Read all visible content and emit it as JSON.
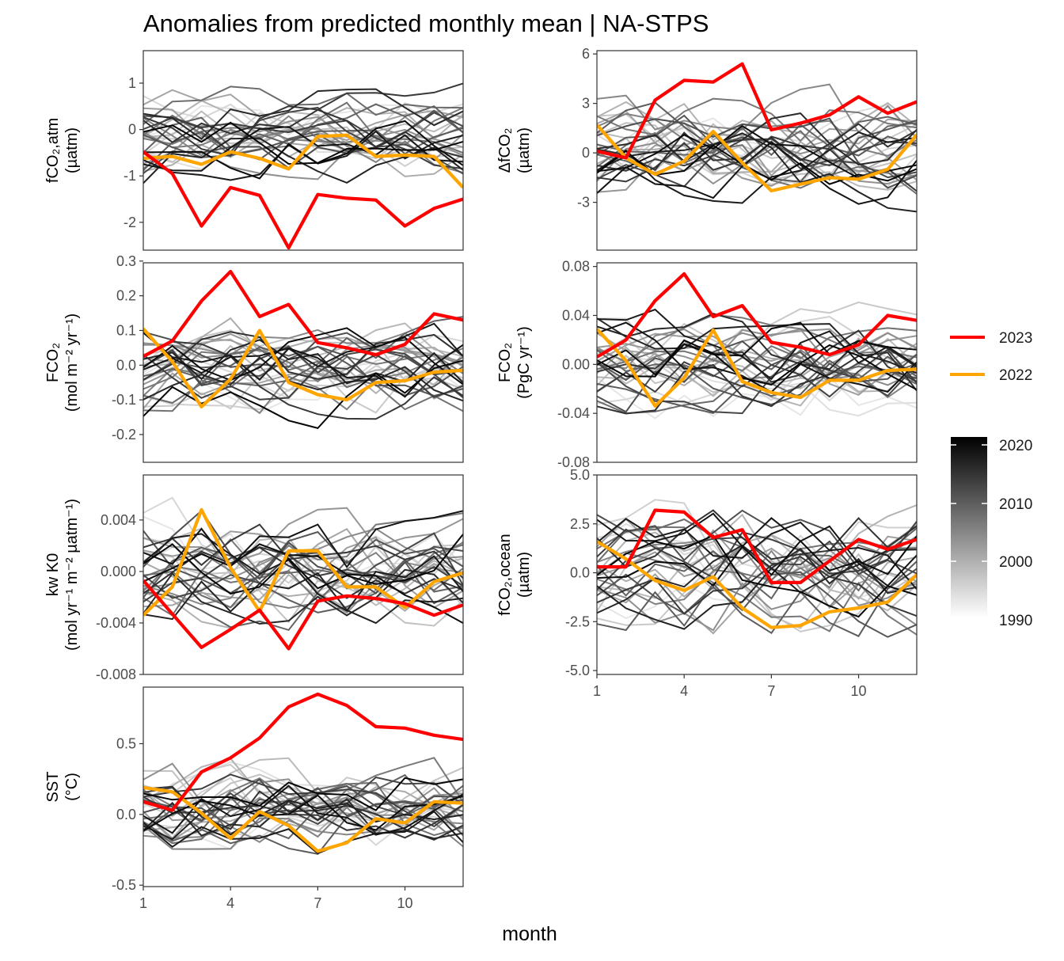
{
  "title": "Anomalies from predicted monthly mean | NA-STPS",
  "x_axis_label": "month",
  "x_ticks": [
    1,
    4,
    7,
    10
  ],
  "legend": {
    "highlight": [
      {
        "label": "2023",
        "color": "#ff0000"
      },
      {
        "label": "2022",
        "color": "#ffa500"
      }
    ],
    "colorbar_labels": [
      "2020",
      "2010",
      "2000",
      "1990"
    ],
    "colorbar_range": [
      1990,
      2021
    ]
  },
  "chart_data": [
    {
      "type": "line",
      "ylabel_lines": [
        "fCO₂,atm",
        "(µatm)"
      ],
      "yticks": [
        "1",
        "0",
        "-1",
        "-2"
      ],
      "ytick_values": [
        1,
        0,
        -1,
        -2
      ],
      "ylim": [
        -2.6,
        1.7
      ],
      "xlim": [
        1,
        12
      ],
      "series": [
        {
          "name": "2023",
          "x": [
            1,
            2,
            3,
            4,
            5,
            6,
            7,
            8,
            9,
            10,
            11,
            12
          ],
          "y": [
            -0.48,
            -0.95,
            -2.08,
            -1.25,
            -1.42,
            -2.55,
            -1.4,
            -1.48,
            -1.52,
            -2.08,
            -1.7,
            -1.5
          ]
        },
        {
          "name": "2022",
          "x": [
            1,
            2,
            3,
            4,
            5,
            6,
            7,
            8,
            9,
            10,
            11,
            12
          ],
          "y": [
            -0.62,
            -0.58,
            -0.75,
            -0.48,
            -0.62,
            -0.85,
            -0.15,
            -0.12,
            -0.58,
            -0.55,
            -0.58,
            -1.25
          ]
        }
      ],
      "background_range": [
        -1.5,
        1.2
      ]
    },
    {
      "type": "line",
      "ylabel_lines": [
        "ΔfCO₂",
        "(µatm)"
      ],
      "yticks": [
        "6",
        "3",
        "0",
        "-3"
      ],
      "ytick_values": [
        6,
        3,
        0,
        -3
      ],
      "ylim": [
        -5.9,
        6.2
      ],
      "xlim": [
        1,
        12
      ],
      "series": [
        {
          "name": "2023",
          "x": [
            1,
            2,
            3,
            4,
            5,
            6,
            7,
            8,
            9,
            10,
            11,
            12
          ],
          "y": [
            0.1,
            -0.3,
            3.2,
            4.4,
            4.3,
            5.4,
            1.4,
            1.8,
            2.3,
            3.4,
            2.4,
            3.1
          ]
        },
        {
          "name": "2022",
          "x": [
            1,
            2,
            3,
            4,
            5,
            6,
            7,
            8,
            9,
            10,
            11,
            12
          ],
          "y": [
            1.7,
            -0.3,
            -1.3,
            -0.5,
            1.3,
            -0.6,
            -2.3,
            -1.9,
            -1.5,
            -1.6,
            -1.0,
            1.1
          ]
        }
      ],
      "background_range": [
        -4.5,
        4.5
      ]
    },
    {
      "type": "line",
      "ylabel_lines": [
        "FCO₂",
        "(mol m⁻² yr⁻¹)"
      ],
      "yticks": [
        "0.3",
        "0.2",
        "0.1",
        "0.0",
        "-0.1",
        "-0.2"
      ],
      "ytick_values": [
        0.3,
        0.2,
        0.1,
        0.0,
        -0.1,
        -0.2
      ],
      "ylim": [
        -0.28,
        0.295
      ],
      "xlim": [
        1,
        12
      ],
      "series": [
        {
          "name": "2023",
          "x": [
            1,
            2,
            3,
            4,
            5,
            6,
            7,
            8,
            9,
            10,
            11,
            12
          ],
          "y": [
            0.025,
            0.07,
            0.185,
            0.27,
            0.14,
            0.175,
            0.065,
            0.05,
            0.03,
            0.06,
            0.148,
            0.13
          ]
        },
        {
          "name": "2022",
          "x": [
            1,
            2,
            3,
            4,
            5,
            6,
            7,
            8,
            9,
            10,
            11,
            12
          ],
          "y": [
            0.105,
            0.01,
            -0.12,
            -0.04,
            0.1,
            -0.05,
            -0.085,
            -0.1,
            -0.05,
            -0.045,
            -0.02,
            -0.015
          ]
        }
      ],
      "background_range": [
        -0.2,
        0.2
      ]
    },
    {
      "type": "line",
      "ylabel_lines": [
        "FCO₂",
        "(PgC yr⁻¹)"
      ],
      "yticks": [
        "0.08",
        "0.04",
        "0.00",
        "-0.04",
        "-0.08"
      ],
      "ytick_values": [
        0.08,
        0.04,
        0.0,
        -0.04,
        -0.08
      ],
      "ylim": [
        -0.08,
        0.083
      ],
      "xlim": [
        1,
        12
      ],
      "series": [
        {
          "name": "2023",
          "x": [
            1,
            2,
            3,
            4,
            5,
            6,
            7,
            8,
            9,
            10,
            11,
            12
          ],
          "y": [
            0.006,
            0.02,
            0.052,
            0.074,
            0.039,
            0.048,
            0.018,
            0.014,
            0.008,
            0.016,
            0.04,
            0.036
          ]
        },
        {
          "name": "2022",
          "x": [
            1,
            2,
            3,
            4,
            5,
            6,
            7,
            8,
            9,
            10,
            11,
            12
          ],
          "y": [
            0.029,
            0.003,
            -0.034,
            -0.011,
            0.028,
            -0.014,
            -0.023,
            -0.027,
            -0.013,
            -0.013,
            -0.005,
            -0.004
          ]
        }
      ],
      "background_range": [
        -0.058,
        0.058
      ]
    },
    {
      "type": "line",
      "ylabel_lines": [
        "kw K0",
        "(mol yr⁻¹ m⁻² µatm⁻¹)"
      ],
      "yticks": [
        "0.004",
        "0.000",
        "-0.004",
        "-0.008"
      ],
      "ytick_values": [
        0.004,
        0.0,
        -0.004,
        -0.008
      ],
      "ylim": [
        -0.008,
        0.0075
      ],
      "xlim": [
        1,
        12
      ],
      "series": [
        {
          "name": "2023",
          "x": [
            1,
            2,
            3,
            4,
            5,
            6,
            7,
            8,
            9,
            10,
            11,
            12
          ],
          "y": [
            -0.0007,
            -0.0033,
            -0.0059,
            -0.0045,
            -0.003,
            -0.006,
            -0.0023,
            -0.0019,
            -0.0021,
            -0.0025,
            -0.0034,
            -0.0026
          ]
        },
        {
          "name": "2022",
          "x": [
            1,
            2,
            3,
            4,
            5,
            6,
            7,
            8,
            9,
            10,
            11,
            12
          ],
          "y": [
            -0.0034,
            -0.0012,
            0.0048,
            0.0003,
            -0.0031,
            0.0016,
            0.0016,
            -0.0012,
            -0.0012,
            -0.0028,
            -0.0008,
            -0.0001
          ]
        }
      ],
      "background_range": [
        -0.0065,
        0.0068
      ]
    },
    {
      "type": "line",
      "ylabel_lines": [
        "fCO₂,ocean",
        "(µatm)"
      ],
      "yticks": [
        "5.0",
        "2.5",
        "0.0",
        "-2.5",
        "-5.0"
      ],
      "ytick_values": [
        5.0,
        2.5,
        0.0,
        -2.5,
        -5.0
      ],
      "ylim": [
        -5.2,
        5.0
      ],
      "xlim": [
        1,
        12
      ],
      "series": [
        {
          "name": "2023",
          "x": [
            1,
            2,
            3,
            4,
            5,
            6,
            7,
            8,
            9,
            10,
            11,
            12
          ],
          "y": [
            0.3,
            0.3,
            3.2,
            3.1,
            1.8,
            2.2,
            -0.5,
            -0.5,
            0.6,
            1.7,
            1.2,
            1.7
          ]
        },
        {
          "name": "2022",
          "x": [
            1,
            2,
            3,
            4,
            5,
            6,
            7,
            8,
            9,
            10,
            11,
            12
          ],
          "y": [
            1.6,
            0.7,
            -0.4,
            -0.9,
            -0.2,
            -1.8,
            -2.8,
            -2.7,
            -2.0,
            -1.8,
            -1.5,
            -0.1
          ]
        }
      ],
      "background_range": [
        -4.5,
        4.5
      ]
    },
    {
      "type": "line",
      "ylabel_lines": [
        "SST",
        "(°C)"
      ],
      "yticks": [
        "0.5",
        "0.0",
        "-0.5"
      ],
      "ytick_values": [
        0.5,
        0.0,
        -0.5
      ],
      "ylim": [
        -0.51,
        0.9
      ],
      "xlim": [
        1,
        12
      ],
      "series": [
        {
          "name": "2023",
          "x": [
            1,
            2,
            3,
            4,
            5,
            6,
            7,
            8,
            9,
            10,
            11,
            12
          ],
          "y": [
            0.09,
            0.03,
            0.3,
            0.4,
            0.54,
            0.76,
            0.85,
            0.77,
            0.62,
            0.61,
            0.56,
            0.53
          ]
        },
        {
          "name": "2022",
          "x": [
            1,
            2,
            3,
            4,
            5,
            6,
            7,
            8,
            9,
            10,
            11,
            12
          ],
          "y": [
            0.19,
            0.16,
            0.01,
            -0.17,
            0.02,
            -0.08,
            -0.26,
            -0.2,
            -0.03,
            -0.06,
            0.09,
            0.08
          ]
        }
      ],
      "background_range": [
        -0.45,
        0.5
      ]
    }
  ]
}
